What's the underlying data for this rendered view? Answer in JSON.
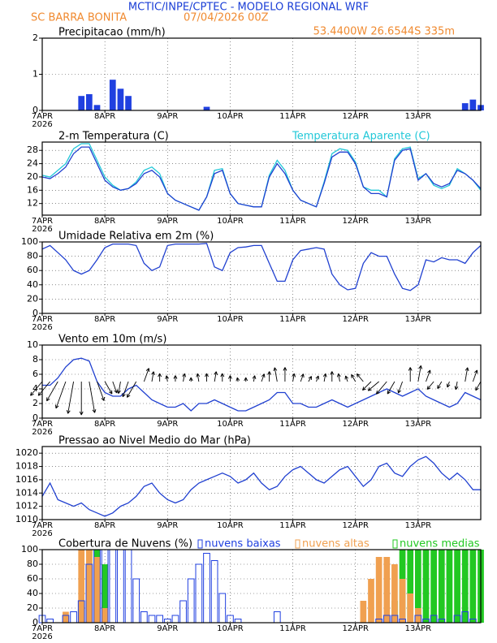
{
  "header": {
    "title": "MCTIC/INPE/CPTEC - MODELO REGIONAL WRF",
    "location": "SC BARRA BONITA",
    "run": "07/04/2026 00Z",
    "coordinates": "53.4400W 26.6544S 335m"
  },
  "chart_data": [
    {
      "type": "bar",
      "title": "Precipitacao (mm/h)",
      "year": "2026",
      "x": [
        0,
        3,
        6,
        9,
        12,
        15,
        18,
        21,
        24,
        27,
        30,
        33,
        36,
        39,
        42,
        45,
        48,
        51,
        54,
        57,
        60,
        63,
        66,
        69,
        72,
        75,
        78,
        81,
        84,
        87,
        90,
        93,
        96,
        99,
        102,
        105,
        108,
        111,
        114,
        117,
        120,
        123,
        126,
        129,
        132,
        135,
        138,
        141,
        144,
        147,
        150,
        153,
        156,
        159,
        162,
        165,
        168
      ],
      "xlim": [
        0,
        168
      ],
      "xticks": [
        {
          "value": 0,
          "label": "7APR"
        },
        {
          "value": 24,
          "label": "8APR"
        },
        {
          "value": 48,
          "label": "9APR"
        },
        {
          "value": 72,
          "label": "10APR"
        },
        {
          "value": 96,
          "label": "11APR"
        },
        {
          "value": 120,
          "label": "12APR"
        },
        {
          "value": 144,
          "label": "13APR"
        }
      ],
      "ylim": [
        0,
        2
      ],
      "yticks": [
        0,
        1,
        2
      ],
      "grid": true,
      "series": [
        {
          "color": "#2040e0",
          "fill": true,
          "values": [
            0,
            0,
            0,
            0,
            0,
            0.4,
            0.45,
            0.15,
            0,
            0.85,
            0.6,
            0.4,
            0,
            0,
            0,
            0,
            0,
            0,
            0,
            0,
            0,
            0.1,
            0,
            0,
            0,
            0,
            0,
            0,
            0,
            0,
            0,
            0,
            0,
            0,
            0,
            0,
            0,
            0,
            0,
            0,
            0,
            0,
            0,
            0,
            0,
            0,
            0,
            0,
            0,
            0,
            0,
            0,
            0,
            0,
            0.2,
            0.3,
            0.15
          ]
        }
      ]
    },
    {
      "type": "line",
      "title": "2-m Temperatura (C)",
      "year": "2026",
      "x": [
        0,
        3,
        6,
        9,
        12,
        15,
        18,
        21,
        24,
        27,
        30,
        33,
        36,
        39,
        42,
        45,
        48,
        51,
        54,
        57,
        60,
        63,
        66,
        69,
        72,
        75,
        78,
        81,
        84,
        87,
        90,
        93,
        96,
        99,
        102,
        105,
        108,
        111,
        114,
        117,
        120,
        123,
        126,
        129,
        132,
        135,
        138,
        141,
        144,
        147,
        150,
        153,
        156,
        159,
        162,
        165,
        168
      ],
      "xlim": [
        0,
        168
      ],
      "xticks": [
        {
          "value": 0,
          "label": "7APR"
        },
        {
          "value": 24,
          "label": "8APR"
        },
        {
          "value": 48,
          "label": "9APR"
        },
        {
          "value": 72,
          "label": "10APR"
        },
        {
          "value": 96,
          "label": "11APR"
        },
        {
          "value": 120,
          "label": "12APR"
        },
        {
          "value": 144,
          "label": "13APR"
        }
      ],
      "ylim": [
        8.5,
        30.5
      ],
      "yticks": [
        12,
        16,
        20,
        24,
        28
      ],
      "grid": true,
      "series": [
        {
          "color": "#22c8d8",
          "name": "Temperatura Aparente (C)",
          "values": [
            20.5,
            20,
            22,
            24,
            28.5,
            30,
            30,
            25,
            20,
            17.5,
            16,
            16.5,
            18.5,
            22,
            23,
            21,
            15,
            13,
            12,
            11,
            10,
            14,
            22,
            22.5,
            15,
            12,
            11.5,
            11,
            11,
            20.5,
            25,
            22,
            16,
            13,
            12,
            11,
            18.5,
            27,
            28.5,
            28,
            24.5,
            17,
            16,
            16,
            14,
            25.5,
            28.5,
            29,
            19.5,
            21,
            17.5,
            16.5,
            17.5,
            22.5,
            21,
            19,
            16
          ]
        },
        {
          "color": "#2040d0",
          "values": [
            20,
            19.5,
            21,
            23,
            27,
            29,
            29,
            24,
            19,
            17,
            16,
            16.5,
            18,
            21,
            22,
            20,
            15,
            13,
            12,
            11,
            10,
            14,
            21,
            22,
            15,
            12,
            11.5,
            11,
            11,
            20,
            24,
            21,
            16,
            13,
            12,
            11,
            18,
            26,
            27.5,
            27.5,
            24,
            17,
            15,
            15,
            14,
            25,
            28,
            28.5,
            19,
            21,
            18,
            17,
            18,
            22,
            21,
            19,
            16.5
          ]
        }
      ]
    },
    {
      "type": "line",
      "title": "Umidade Relativa em 2m (%)",
      "year": "2026",
      "x": [
        0,
        3,
        6,
        9,
        12,
        15,
        18,
        21,
        24,
        27,
        30,
        33,
        36,
        39,
        42,
        45,
        48,
        51,
        54,
        57,
        60,
        63,
        66,
        69,
        72,
        75,
        78,
        81,
        84,
        87,
        90,
        93,
        96,
        99,
        102,
        105,
        108,
        111,
        114,
        117,
        120,
        123,
        126,
        129,
        132,
        135,
        138,
        141,
        144,
        147,
        150,
        153,
        156,
        159,
        162,
        165,
        168
      ],
      "xlim": [
        0,
        168
      ],
      "xticks": [
        {
          "value": 0,
          "label": "7APR"
        },
        {
          "value": 24,
          "label": "8APR"
        },
        {
          "value": 48,
          "label": "9APR"
        },
        {
          "value": 72,
          "label": "10APR"
        },
        {
          "value": 96,
          "label": "11APR"
        },
        {
          "value": 120,
          "label": "12APR"
        },
        {
          "value": 144,
          "label": "13APR"
        }
      ],
      "ylim": [
        0,
        100
      ],
      "yticks": [
        0,
        20,
        40,
        60,
        80,
        100
      ],
      "grid": true,
      "series": [
        {
          "color": "#2040d0",
          "values": [
            90,
            95,
            85,
            75,
            60,
            55,
            60,
            75,
            92,
            97,
            97,
            97,
            95,
            70,
            60,
            65,
            95,
            97,
            97,
            97,
            97,
            98,
            65,
            60,
            85,
            92,
            93,
            95,
            95,
            70,
            45,
            45,
            75,
            88,
            90,
            92,
            90,
            55,
            40,
            33,
            35,
            70,
            85,
            80,
            80,
            55,
            35,
            32,
            40,
            75,
            72,
            78,
            75,
            75,
            70,
            85,
            95
          ]
        }
      ]
    },
    {
      "type": "line",
      "title": "Vento em 10m (m/s)",
      "year": "2026",
      "x": [
        0,
        3,
        6,
        9,
        12,
        15,
        18,
        21,
        24,
        27,
        30,
        33,
        36,
        39,
        42,
        45,
        48,
        51,
        54,
        57,
        60,
        63,
        66,
        69,
        72,
        75,
        78,
        81,
        84,
        87,
        90,
        93,
        96,
        99,
        102,
        105,
        108,
        111,
        114,
        117,
        120,
        123,
        126,
        129,
        132,
        135,
        138,
        141,
        144,
        147,
        150,
        153,
        156,
        159,
        162,
        165,
        168
      ],
      "xlim": [
        0,
        168
      ],
      "xticks": [
        {
          "value": 0,
          "label": "7APR"
        },
        {
          "value": 24,
          "label": "8APR"
        },
        {
          "value": 48,
          "label": "9APR"
        },
        {
          "value": 72,
          "label": "10APR"
        },
        {
          "value": 96,
          "label": "11APR"
        },
        {
          "value": 120,
          "label": "12APR"
        },
        {
          "value": 144,
          "label": "13APR"
        }
      ],
      "ylim": [
        0,
        10
      ],
      "yticks": [
        0,
        2,
        4,
        6,
        8,
        10
      ],
      "grid": true,
      "direction": [
        40,
        40,
        30,
        20,
        10,
        0,
        350,
        340,
        330,
        340,
        10,
        20,
        30,
        200,
        190,
        180,
        170,
        180,
        190,
        180,
        170,
        180,
        190,
        180,
        180,
        170,
        180,
        190,
        200,
        180,
        170,
        180,
        190,
        200,
        210,
        200,
        190,
        180,
        170,
        160,
        150,
        140,
        45,
        50,
        40,
        30,
        20,
        180,
        190,
        200,
        40,
        30,
        20,
        10,
        190,
        200,
        30
      ],
      "series": [
        {
          "color": "#2040d0",
          "values": [
            4.5,
            4.5,
            5.5,
            7,
            8,
            8.2,
            7.8,
            5,
            3.5,
            3,
            3,
            4,
            4.5,
            3.5,
            2.5,
            2,
            1.5,
            1.5,
            2,
            1,
            2,
            2,
            2.5,
            2,
            1.5,
            1,
            1,
            1.5,
            2,
            2.5,
            3.5,
            3.5,
            2,
            2,
            1.5,
            1.5,
            2,
            2.5,
            2,
            1.5,
            2,
            2.5,
            3,
            3.5,
            4,
            3.5,
            3,
            3.5,
            4,
            3,
            2.5,
            2,
            1.5,
            2,
            3.5,
            3,
            2.5
          ]
        }
      ]
    },
    {
      "type": "line",
      "title": "Pressao ao Nivel Medio do Mar (hPa)",
      "year": "2026",
      "x": [
        0,
        3,
        6,
        9,
        12,
        15,
        18,
        21,
        24,
        27,
        30,
        33,
        36,
        39,
        42,
        45,
        48,
        51,
        54,
        57,
        60,
        63,
        66,
        69,
        72,
        75,
        78,
        81,
        84,
        87,
        90,
        93,
        96,
        99,
        102,
        105,
        108,
        111,
        114,
        117,
        120,
        123,
        126,
        129,
        132,
        135,
        138,
        141,
        144,
        147,
        150,
        153,
        156,
        159,
        162,
        165,
        168
      ],
      "xlim": [
        0,
        168
      ],
      "xticks": [
        {
          "value": 0,
          "label": "7APR"
        },
        {
          "value": 24,
          "label": "8APR"
        },
        {
          "value": 48,
          "label": "9APR"
        },
        {
          "value": 72,
          "label": "10APR"
        },
        {
          "value": 96,
          "label": "11APR"
        },
        {
          "value": 120,
          "label": "12APR"
        },
        {
          "value": 144,
          "label": "13APR"
        }
      ],
      "ylim": [
        1010,
        1021
      ],
      "yticks": [
        1010,
        1012,
        1014,
        1016,
        1018,
        1020
      ],
      "grid": true,
      "series": [
        {
          "color": "#2040d0",
          "values": [
            1013.5,
            1015.5,
            1013,
            1012.5,
            1012,
            1012.5,
            1011.5,
            1011,
            1010.5,
            1011,
            1012,
            1012.5,
            1013.5,
            1015,
            1015.5,
            1014,
            1013,
            1012.5,
            1013,
            1014.5,
            1015.5,
            1016,
            1016.5,
            1017,
            1016.5,
            1015.5,
            1016,
            1017,
            1015.5,
            1014.5,
            1015,
            1016.5,
            1017.5,
            1018,
            1017,
            1016,
            1015.5,
            1016.5,
            1017.5,
            1018,
            1016.5,
            1015,
            1016,
            1018,
            1018.5,
            1017,
            1016.5,
            1018,
            1019,
            1019.5,
            1018.5,
            1017,
            1016,
            1017,
            1016,
            1014.5,
            1014.5
          ]
        }
      ]
    },
    {
      "type": "bar",
      "title": "Cobertura de Nuvens (%)",
      "year": "2026",
      "x": [
        0,
        3,
        6,
        9,
        12,
        15,
        18,
        21,
        24,
        27,
        30,
        33,
        36,
        39,
        42,
        45,
        48,
        51,
        54,
        57,
        60,
        63,
        66,
        69,
        72,
        75,
        78,
        81,
        84,
        87,
        90,
        93,
        96,
        99,
        102,
        105,
        108,
        111,
        114,
        117,
        120,
        123,
        126,
        129,
        132,
        135,
        138,
        141,
        144,
        147,
        150,
        153,
        156,
        159,
        162,
        165,
        168
      ],
      "xlim": [
        0,
        168
      ],
      "xticks": [
        {
          "value": 0,
          "label": "7APR"
        },
        {
          "value": 24,
          "label": "8APR"
        },
        {
          "value": 48,
          "label": "9APR"
        },
        {
          "value": 72,
          "label": "10APR"
        },
        {
          "value": 96,
          "label": "11APR"
        },
        {
          "value": 120,
          "label": "12APR"
        },
        {
          "value": 144,
          "label": "13APR"
        }
      ],
      "ylim": [
        0,
        100
      ],
      "yticks": [
        0,
        20,
        40,
        60,
        80,
        100
      ],
      "grid": true,
      "series": [
        {
          "name": "nuvens medias",
          "color": "#22c822",
          "fill": true,
          "values": [
            0,
            0,
            0,
            0,
            0,
            20,
            100,
            100,
            80,
            0,
            0,
            0,
            0,
            0,
            0,
            0,
            0,
            0,
            0,
            0,
            0,
            0,
            0,
            0,
            0,
            0,
            0,
            0,
            0,
            0,
            0,
            0,
            0,
            0,
            0,
            0,
            0,
            0,
            0,
            0,
            0,
            0,
            0,
            0,
            0,
            30,
            100,
            100,
            100,
            100,
            100,
            100,
            100,
            100,
            100,
            100,
            100
          ]
        },
        {
          "name": "nuvens altas",
          "color": "#f0a050",
          "fill": true,
          "values": [
            0,
            0,
            0,
            15,
            0,
            100,
            100,
            90,
            20,
            0,
            0,
            0,
            0,
            0,
            0,
            0,
            0,
            0,
            0,
            0,
            0,
            0,
            0,
            0,
            0,
            0,
            0,
            0,
            0,
            0,
            0,
            0,
            0,
            0,
            0,
            0,
            0,
            0,
            0,
            0,
            0,
            30,
            60,
            90,
            90,
            80,
            60,
            40,
            20,
            0,
            0,
            0,
            0,
            0,
            0,
            0,
            0
          ]
        },
        {
          "name": "nuvens baixas",
          "color": "#2040e0",
          "fill": false,
          "values": [
            10,
            5,
            0,
            10,
            15,
            30,
            80,
            100,
            100,
            100,
            100,
            100,
            60,
            15,
            10,
            10,
            5,
            10,
            30,
            60,
            80,
            95,
            85,
            40,
            10,
            5,
            0,
            0,
            0,
            0,
            15,
            0,
            0,
            0,
            0,
            0,
            0,
            0,
            0,
            0,
            0,
            0,
            0,
            5,
            10,
            10,
            5,
            0,
            10,
            5,
            10,
            5,
            0,
            10,
            15,
            5,
            0
          ]
        }
      ]
    }
  ]
}
